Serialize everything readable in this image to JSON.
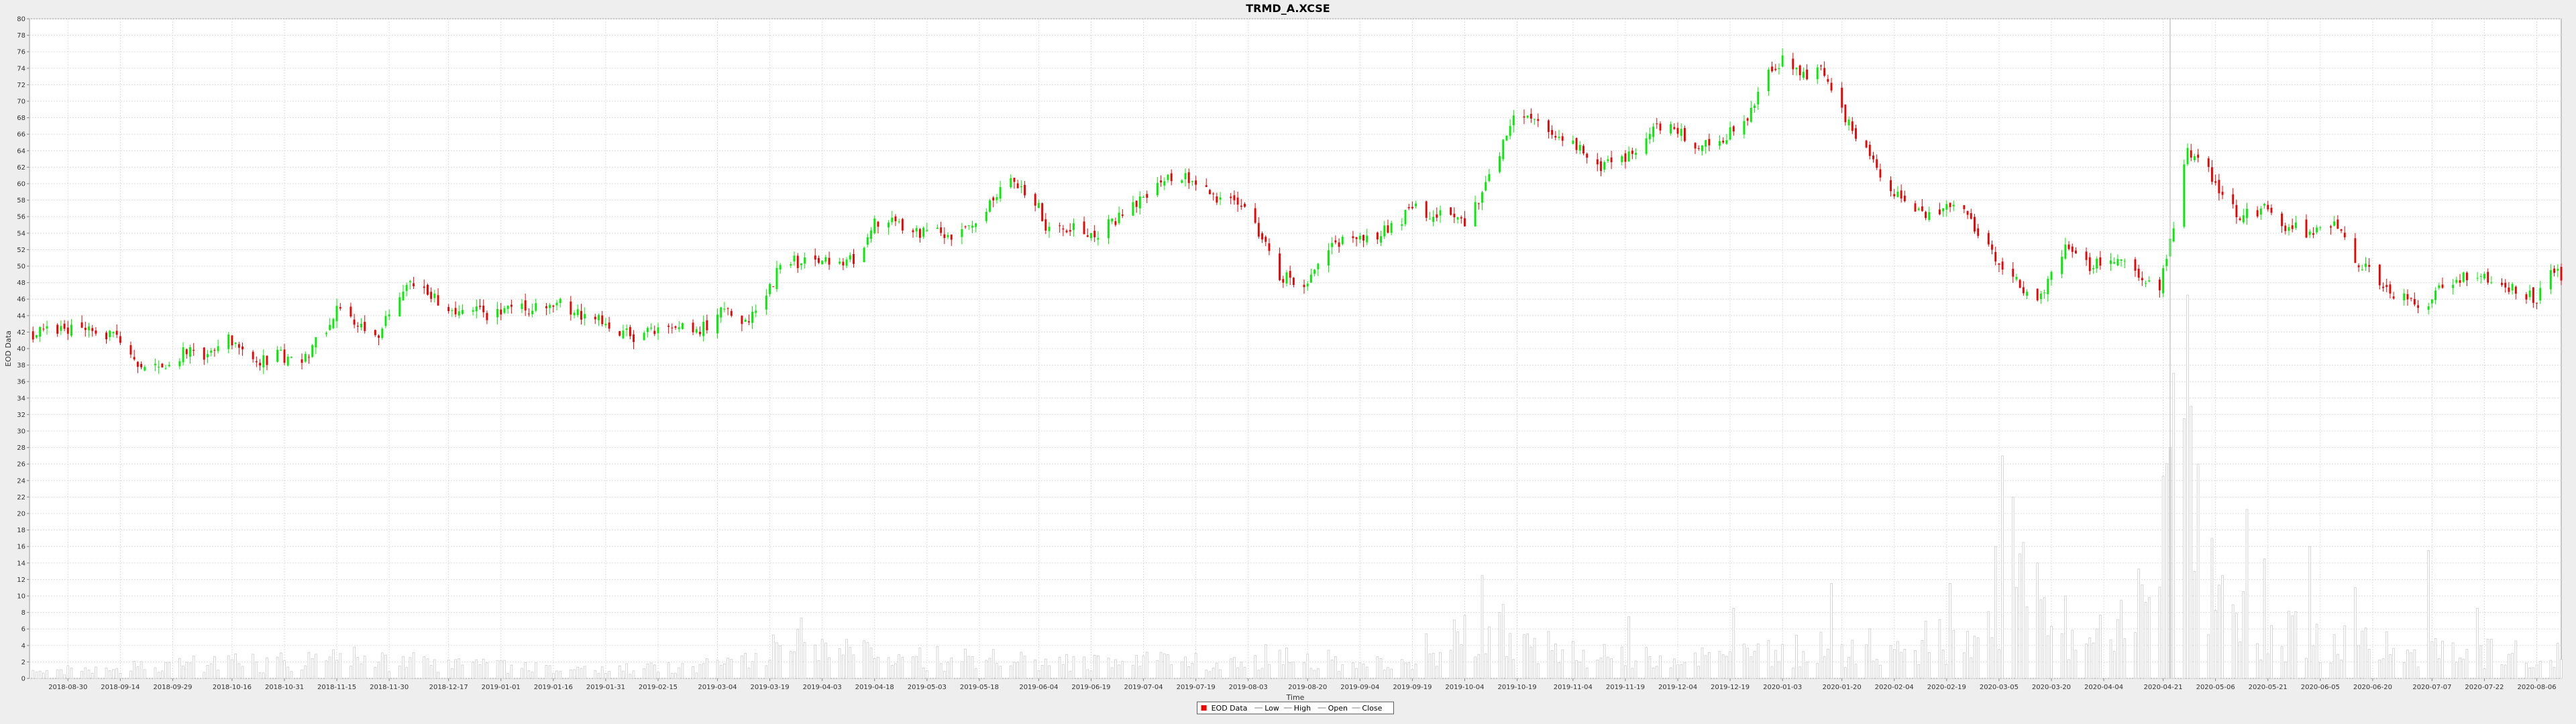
{
  "chart_data": {
    "type": "candlestick",
    "title": "TRMD_A.XCSE",
    "xlabel": "Time",
    "ylabel": "EOD Data",
    "ylim": [
      0,
      80
    ],
    "y_ticks": [
      0,
      2,
      4,
      6,
      8,
      10,
      12,
      14,
      16,
      18,
      20,
      22,
      24,
      26,
      28,
      30,
      32,
      34,
      36,
      38,
      40,
      42,
      44,
      46,
      48,
      50,
      52,
      54,
      56,
      58,
      60,
      62,
      64,
      66,
      68,
      70,
      72,
      74,
      76,
      78,
      80
    ],
    "x_range": [
      "2018-08-19",
      "2020-08-13"
    ],
    "x_ticks": [
      "2018-08-30",
      "2018-09-14",
      "2018-09-29",
      "2018-10-16",
      "2018-10-31",
      "2018-11-15",
      "2018-11-30",
      "2018-12-17",
      "2019-01-01",
      "2019-01-16",
      "2019-01-31",
      "2019-02-15",
      "2019-03-04",
      "2019-03-19",
      "2019-04-03",
      "2019-04-18",
      "2019-05-03",
      "2019-05-18",
      "2019-06-04",
      "2019-06-19",
      "2019-07-04",
      "2019-07-19",
      "2019-08-03",
      "2019-08-20",
      "2019-09-04",
      "2019-09-19",
      "2019-10-04",
      "2019-10-19",
      "2019-11-04",
      "2019-11-19",
      "2019-12-04",
      "2019-12-19",
      "2020-01-03",
      "2020-01-20",
      "2020-02-04",
      "2020-02-19",
      "2020-03-05",
      "2020-03-20",
      "2020-04-04",
      "2020-04-21",
      "2020-05-06",
      "2020-05-21",
      "2020-06-05",
      "2020-06-20",
      "2020-07-07",
      "2020-07-22",
      "2020-08-06"
    ],
    "close_anchors": [
      [
        "2018-08-20",
        41.8
      ],
      [
        "2018-08-27",
        42.2
      ],
      [
        "2018-09-05",
        42.6
      ],
      [
        "2018-09-12",
        41.5
      ],
      [
        "2018-09-20",
        38.0
      ],
      [
        "2018-09-28",
        38.4
      ],
      [
        "2018-10-03",
        39.8
      ],
      [
        "2018-10-08",
        39.0
      ],
      [
        "2018-10-15",
        41.5
      ],
      [
        "2018-10-22",
        38.0
      ],
      [
        "2018-10-29",
        39.2
      ],
      [
        "2018-11-05",
        38.5
      ],
      [
        "2018-11-12",
        42.5
      ],
      [
        "2018-11-15",
        44.5
      ],
      [
        "2018-11-22",
        43.0
      ],
      [
        "2018-11-27",
        41.5
      ],
      [
        "2018-12-03",
        46.5
      ],
      [
        "2018-12-07",
        48.0
      ],
      [
        "2018-12-12",
        46.5
      ],
      [
        "2018-12-19",
        44.8
      ],
      [
        "2018-12-28",
        44.2
      ],
      [
        "2019-01-10",
        44.8
      ],
      [
        "2019-01-17",
        45.5
      ],
      [
        "2019-01-22",
        44.5
      ],
      [
        "2019-02-01",
        43.0
      ],
      [
        "2019-02-08",
        41.5
      ],
      [
        "2019-02-18",
        42.5
      ],
      [
        "2019-03-01",
        42.5
      ],
      [
        "2019-03-06",
        45.0
      ],
      [
        "2019-03-12",
        43.0
      ],
      [
        "2019-03-18",
        46.0
      ],
      [
        "2019-03-22",
        50.5
      ],
      [
        "2019-04-02",
        50.5
      ],
      [
        "2019-04-12",
        51.0
      ],
      [
        "2019-04-18",
        55.0
      ],
      [
        "2019-04-22",
        56.0
      ],
      [
        "2019-04-30",
        54.0
      ],
      [
        "2019-05-14",
        54.0
      ],
      [
        "2019-05-22",
        58.0
      ],
      [
        "2019-05-27",
        61.0
      ],
      [
        "2019-06-04",
        57.0
      ],
      [
        "2019-06-06",
        54.5
      ],
      [
        "2019-06-14",
        55.0
      ],
      [
        "2019-06-20",
        53.5
      ],
      [
        "2019-06-28",
        56.5
      ],
      [
        "2019-07-05",
        58.5
      ],
      [
        "2019-07-10",
        60.5
      ],
      [
        "2019-07-16",
        60.8
      ],
      [
        "2019-07-25",
        58.5
      ],
      [
        "2019-07-31",
        58.0
      ],
      [
        "2019-08-05",
        55.0
      ],
      [
        "2019-08-12",
        49.0
      ],
      [
        "2019-08-19",
        47.5
      ],
      [
        "2019-08-23",
        51.0
      ],
      [
        "2019-08-30",
        53.0
      ],
      [
        "2019-09-05",
        53.0
      ],
      [
        "2019-09-13",
        55.0
      ],
      [
        "2019-09-20",
        57.0
      ],
      [
        "2019-09-27",
        56.0
      ],
      [
        "2019-10-04",
        55.0
      ],
      [
        "2019-10-08",
        58.0
      ],
      [
        "2019-10-14",
        64.0
      ],
      [
        "2019-10-18",
        68.0
      ],
      [
        "2019-10-23",
        68.5
      ],
      [
        "2019-10-31",
        66.0
      ],
      [
        "2019-11-06",
        64.0
      ],
      [
        "2019-11-12",
        62.0
      ],
      [
        "2019-11-19",
        63.0
      ],
      [
        "2019-11-27",
        67.0
      ],
      [
        "2019-12-04",
        66.5
      ],
      [
        "2019-12-09",
        65.0
      ],
      [
        "2019-12-16",
        65.5
      ],
      [
        "2019-12-23",
        67.0
      ],
      [
        "2019-12-30",
        74.0
      ],
      [
        "2020-01-03",
        75.0
      ],
      [
        "2020-01-09",
        73.0
      ],
      [
        "2020-01-14",
        74.0
      ],
      [
        "2020-01-17",
        71.0
      ],
      [
        "2020-01-22",
        67.0
      ],
      [
        "2020-01-27",
        64.5
      ],
      [
        "2020-01-31",
        61.0
      ],
      [
        "2020-02-05",
        58.5
      ],
      [
        "2020-02-12",
        56.0
      ],
      [
        "2020-02-20",
        57.0
      ],
      [
        "2020-02-25",
        56.0
      ],
      [
        "2020-03-02",
        52.0
      ],
      [
        "2020-03-10",
        48.0
      ],
      [
        "2020-03-17",
        46.0
      ],
      [
        "2020-03-20",
        50.0
      ],
      [
        "2020-03-24",
        52.0
      ],
      [
        "2020-03-31",
        50.0
      ],
      [
        "2020-04-07",
        51.0
      ],
      [
        "2020-04-14",
        49.0
      ],
      [
        "2020-04-20",
        47.0
      ],
      [
        "2020-04-24",
        55.0
      ],
      [
        "2020-04-28",
        64.0
      ],
      [
        "2020-05-05",
        61.0
      ],
      [
        "2020-05-12",
        56.0
      ],
      [
        "2020-05-20",
        57.0
      ],
      [
        "2020-05-26",
        55.0
      ],
      [
        "2020-06-02",
        54.0
      ],
      [
        "2020-06-10",
        55.0
      ],
      [
        "2020-06-15",
        51.0
      ],
      [
        "2020-06-22",
        48.0
      ],
      [
        "2020-06-29",
        46.0
      ],
      [
        "2020-07-06",
        45.0
      ],
      [
        "2020-07-10",
        48.0
      ],
      [
        "2020-07-17",
        49.0
      ],
      [
        "2020-07-24",
        48.0
      ],
      [
        "2020-08-01",
        47.0
      ],
      [
        "2020-08-06",
        46.0
      ],
      [
        "2020-08-10",
        49.0
      ],
      [
        "2020-08-13",
        49.0
      ]
    ],
    "volume_anchors": [
      [
        "2018-08-20",
        0.8
      ],
      [
        "2018-09-15",
        1.2
      ],
      [
        "2018-10-01",
        1.6
      ],
      [
        "2018-11-01",
        2.0
      ],
      [
        "2018-11-25",
        2.4
      ],
      [
        "2018-12-20",
        1.6
      ],
      [
        "2019-01-20",
        1.0
      ],
      [
        "2019-02-20",
        1.2
      ],
      [
        "2019-03-15",
        2.8
      ],
      [
        "2019-03-28",
        4.6
      ],
      [
        "2019-04-20",
        2.6
      ],
      [
        "2019-05-25",
        2.2
      ],
      [
        "2019-06-25",
        1.8
      ],
      [
        "2019-08-10",
        2.6
      ],
      [
        "2019-09-15",
        1.6
      ],
      [
        "2019-10-08",
        6.5
      ],
      [
        "2019-10-20",
        4.0
      ],
      [
        "2019-11-15",
        2.4
      ],
      [
        "2019-12-15",
        2.4
      ],
      [
        "2020-01-05",
        3.2
      ],
      [
        "2020-02-05",
        4.2
      ],
      [
        "2020-03-01",
        5.0
      ],
      [
        "2020-03-10",
        10.0
      ],
      [
        "2020-03-20",
        5.5
      ],
      [
        "2020-04-10",
        4.4
      ],
      [
        "2020-04-22",
        20.0
      ],
      [
        "2020-04-30",
        13.0
      ],
      [
        "2020-05-15",
        6.0
      ],
      [
        "2020-06-10",
        4.2
      ],
      [
        "2020-07-10",
        3.0
      ],
      [
        "2020-08-13",
        2.8
      ]
    ],
    "volume_spikes": [
      [
        "2019-10-05",
        13.5
      ],
      [
        "2019-10-09",
        12.5
      ],
      [
        "2019-10-15",
        9.0
      ],
      [
        "2019-11-20",
        7.5
      ],
      [
        "2019-12-20",
        8.5
      ],
      [
        "2020-01-17",
        11.5
      ],
      [
        "2020-02-20",
        11.5
      ],
      [
        "2020-03-04",
        16.0
      ],
      [
        "2020-03-06",
        27.0
      ],
      [
        "2020-03-09",
        22.0
      ],
      [
        "2020-03-12",
        16.5
      ],
      [
        "2020-03-16",
        14.0
      ],
      [
        "2020-03-24",
        10.0
      ],
      [
        "2020-04-09",
        9.5
      ],
      [
        "2020-04-21",
        24.5
      ],
      [
        "2020-04-23",
        28.0
      ],
      [
        "2020-04-24",
        37.0
      ],
      [
        "2020-04-27",
        31.5
      ],
      [
        "2020-04-28",
        46.5
      ],
      [
        "2020-04-29",
        33.0
      ],
      [
        "2020-05-01",
        26.0
      ],
      [
        "2020-05-05",
        17.0
      ],
      [
        "2020-05-08",
        12.5
      ],
      [
        "2020-05-15",
        20.5
      ],
      [
        "2020-05-20",
        14.5
      ],
      [
        "2020-06-02",
        16.0
      ],
      [
        "2020-06-15",
        11.0
      ],
      [
        "2020-07-06",
        15.5
      ],
      [
        "2020-07-20",
        8.5
      ],
      [
        "2020-08-08",
        7.5
      ]
    ],
    "colors": {
      "up": "#00ee00",
      "down": "#ee0000",
      "volume": "#cccccc",
      "gridline": "#dddddd",
      "crosshair": "#bbbbbb"
    },
    "legend": {
      "placement": "bottom-center",
      "items": [
        {
          "label": "EOD Data",
          "color": "#ee0000",
          "style": "box"
        },
        {
          "label": "Low",
          "color": "#aaaaaa",
          "style": "line"
        },
        {
          "label": "High",
          "color": "#aaaaaa",
          "style": "line"
        },
        {
          "label": "Open",
          "color": "#aaaaaa",
          "style": "line"
        },
        {
          "label": "Close",
          "color": "#aaaaaa",
          "style": "line"
        }
      ]
    },
    "crosshair_date": "2020-04-23",
    "grid": true
  }
}
